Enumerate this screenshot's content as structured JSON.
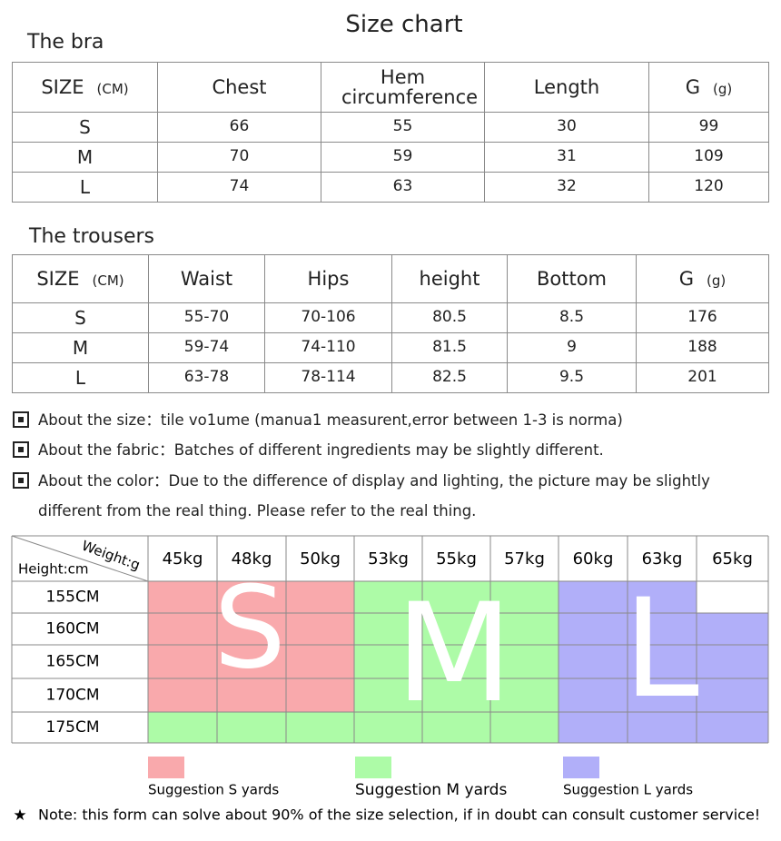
{
  "title": "Size chart",
  "bra": {
    "heading": "The bra",
    "columns": [
      {
        "label": "SIZE",
        "unit": "(CM)"
      },
      {
        "label": "Chest"
      },
      {
        "label": "Hem circumference"
      },
      {
        "label": "Length"
      },
      {
        "label": "G",
        "unit": "(g)"
      }
    ],
    "rows": [
      [
        "S",
        "66",
        "55",
        "30",
        "99"
      ],
      [
        "M",
        "70",
        "59",
        "31",
        "109"
      ],
      [
        "L",
        "74",
        "63",
        "32",
        "120"
      ]
    ]
  },
  "trousers": {
    "heading": "The trousers",
    "columns": [
      {
        "label": "SIZE",
        "unit": "(CM)"
      },
      {
        "label": "Waist"
      },
      {
        "label": "Hips"
      },
      {
        "label": "height"
      },
      {
        "label": "Bottom"
      },
      {
        "label": "G",
        "unit": "(g)"
      }
    ],
    "rows": [
      [
        "S",
        "55-70",
        "70-106",
        "80.5",
        "8.5",
        "176"
      ],
      [
        "M",
        "59-74",
        "74-110",
        "81.5",
        "9",
        "188"
      ],
      [
        "L",
        "63-78",
        "78-114",
        "82.5",
        "9.5",
        "201"
      ]
    ]
  },
  "notes": [
    {
      "label": "About the size：",
      "text": "tile vo1ume (manua1 measurent,error between 1-3 is norma)"
    },
    {
      "label": "About the fabric：",
      "text": "Batches of different ingredients may be slightly different."
    },
    {
      "label": "About the color：",
      "text": "Due to the difference of display and lighting, the picture may be slightly different from the real thing. Please refer to the real thing."
    }
  ],
  "size_grid": {
    "x_label": "Weight:g",
    "y_label": "Height:cm",
    "weights": [
      "45kg",
      "48kg",
      "50kg",
      "53kg",
      "55kg",
      "57kg",
      "60kg",
      "63kg",
      "65kg"
    ],
    "heights": [
      "155CM",
      "160CM",
      "165CM",
      "170CM",
      "175CM"
    ],
    "cells": [
      [
        "S",
        "S",
        "S",
        "M",
        "M",
        "M",
        "L",
        "L",
        null
      ],
      [
        "S",
        "S",
        "S",
        "M",
        "M",
        "M",
        "L",
        "L",
        "L"
      ],
      [
        "S",
        "S",
        "S",
        "M",
        "M",
        "M",
        "L",
        "L",
        "L"
      ],
      [
        "S",
        "S",
        "S",
        "M",
        "M",
        "M",
        "L",
        "L",
        "L"
      ],
      [
        "M",
        "M",
        "M",
        "M",
        "M",
        "M",
        "L",
        "L",
        "L"
      ]
    ],
    "zones": [
      {
        "letter": "S",
        "color": "#f9a9ac",
        "legend": "Suggestion S yards"
      },
      {
        "letter": "M",
        "color": "#adfba7",
        "legend": "Suggestion M yards"
      },
      {
        "letter": "L",
        "color": "#b1aff9",
        "legend": "Suggestion L yards"
      }
    ]
  },
  "footnote": "Note: this form can solve about 90% of the size selection, if in doubt can consult customer service!"
}
